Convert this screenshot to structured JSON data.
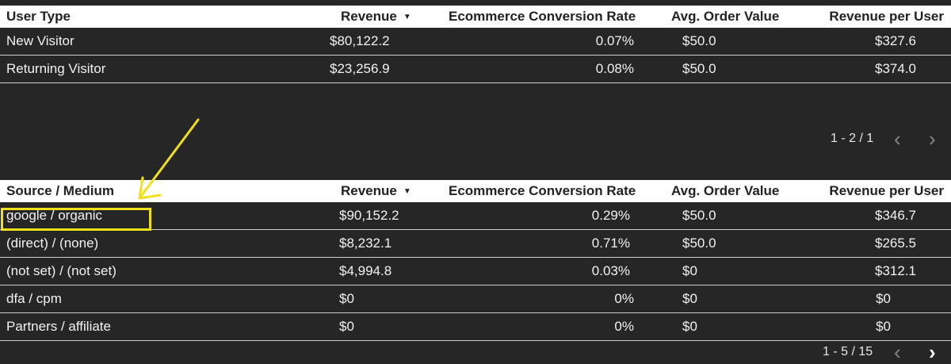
{
  "user_type_table": {
    "headers": {
      "dimension": "User Type",
      "revenue": "Revenue",
      "conversion": "Ecommerce Conversion Rate",
      "aov": "Avg. Order Value",
      "rpu": "Revenue per User"
    },
    "sort_icon": "sort-down-icon",
    "rows": [
      {
        "dimension": "New Visitor",
        "revenue": "$80,122.2",
        "conversion": "0.07%",
        "aov": "$50.0",
        "rpu": "$327.6"
      },
      {
        "dimension": "Returning Visitor",
        "revenue": "$23,256.9",
        "conversion": "0.08%",
        "aov": "$50.0",
        "rpu": "$374.0"
      }
    ],
    "pager": {
      "text": "1 - 2 / 1",
      "prev_icon": "chevron-left-icon",
      "next_icon": "chevron-right-icon"
    }
  },
  "source_medium_table": {
    "headers": {
      "dimension": "Source / Medium",
      "revenue": "Revenue",
      "conversion": "Ecommerce Conversion Rate",
      "aov": "Avg. Order Value",
      "rpu": "Revenue per User"
    },
    "sort_icon": "sort-down-icon",
    "rows": [
      {
        "dimension": "google / organic",
        "revenue": "$90,152.2",
        "conversion": "0.29%",
        "aov": "$50.0",
        "rpu": "$346.7"
      },
      {
        "dimension": "(direct) / (none)",
        "revenue": "$8,232.1",
        "conversion": "0.71%",
        "aov": "$50.0",
        "rpu": "$265.5"
      },
      {
        "dimension": "(not set) / (not set)",
        "revenue": "$4,994.8",
        "conversion": "0.03%",
        "aov": "$0",
        "rpu": "$312.1"
      },
      {
        "dimension": "dfa / cpm",
        "revenue": "$0",
        "conversion": "0%",
        "aov": "$0",
        "rpu": "$0"
      },
      {
        "dimension": "Partners / affiliate",
        "revenue": "$0",
        "conversion": "0%",
        "aov": "$0",
        "rpu": "$0"
      }
    ],
    "pager": {
      "text": "1 - 5 / 15",
      "prev_icon": "chevron-left-icon",
      "next_icon": "chevron-right-icon"
    }
  },
  "annotation": {
    "color": "#f2e11a",
    "arrow_icon": "arrow-annotation-icon"
  }
}
